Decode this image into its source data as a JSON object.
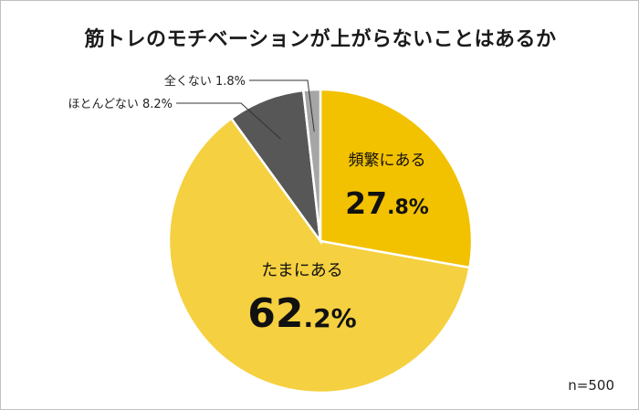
{
  "chart_data": {
    "type": "pie",
    "title": "筋トレのモチベーションが上がらないことはあるか",
    "slices": [
      {
        "label": "頻繁にある",
        "value": 27.8,
        "display_int": "27",
        "display_dec": ".8%",
        "color": "#f2c100"
      },
      {
        "label": "たまにある",
        "value": 62.2,
        "display_int": "62",
        "display_dec": ".2%",
        "color": "#f5d040"
      },
      {
        "label": "ほとんどない",
        "value": 8.2,
        "display": "ほとんどない 8.2%",
        "color": "#575757"
      },
      {
        "label": "全くない",
        "value": 1.8,
        "display": "全くない 1.8%",
        "color": "#a6a6a6"
      }
    ],
    "start_angle_deg": 0,
    "direction": "clockwise",
    "sample_size": "n=500"
  }
}
